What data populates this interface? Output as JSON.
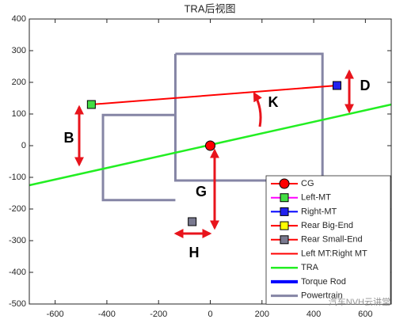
{
  "chart_data": {
    "type": "line",
    "title": "TRA后视图",
    "xlim": [
      -700,
      700
    ],
    "ylim": [
      -500,
      400
    ],
    "xticks": [
      -600,
      -400,
      -200,
      0,
      200,
      400,
      600
    ],
    "yticks": [
      -500,
      -400,
      -300,
      -200,
      -100,
      0,
      100,
      200,
      300,
      400
    ],
    "grid": false,
    "legend_position": "lower right",
    "series": [
      {
        "name": "CG",
        "color": "#ff0000",
        "marker": "circle",
        "marker_color": "#ff0000",
        "x": [
          0
        ],
        "values": [
          0
        ]
      },
      {
        "name": "Left-MT",
        "color": "#ff00ff",
        "marker": "square",
        "marker_color": "#44dd44",
        "x": [
          -460
        ],
        "values": [
          130
        ]
      },
      {
        "name": "Right-MT",
        "color": "#0000ff",
        "marker": "square",
        "marker_color": "#2222ee",
        "x": [
          490
        ],
        "values": [
          190
        ]
      },
      {
        "name": "Rear Big-End",
        "color": "#ff0000",
        "marker": "square",
        "marker_color": "#ffff00",
        "x": [],
        "values": []
      },
      {
        "name": "Rear Small-End",
        "color": "#ff0000",
        "marker": "square",
        "marker_color": "#7a7a90",
        "x": [
          -70
        ],
        "values": [
          -240
        ]
      },
      {
        "name": "Left MT:Right MT",
        "color": "#ff0000",
        "line_width": 2,
        "x": [
          -460,
          490
        ],
        "values": [
          130,
          190
        ]
      },
      {
        "name": "TRA",
        "color": "#22ee22",
        "line_width": 2.5,
        "x": [
          -700,
          700
        ],
        "values": [
          -125,
          130
        ]
      },
      {
        "name": "Torque Rod",
        "color": "#0000ff",
        "line_width": 4,
        "x": [],
        "values": []
      },
      {
        "name": "Powertrain",
        "color": "#8585a5",
        "line_width": 3,
        "x": [
          -135,
          434,
          434,
          -135,
          -135,
          null,
          -135,
          -415,
          -415,
          -135
        ],
        "values": [
          290,
          290,
          -110,
          -110,
          290,
          null,
          97,
          97,
          -172,
          -172
        ]
      }
    ],
    "annotations": [
      "B",
      "D",
      "K",
      "G",
      "H"
    ],
    "watermark": "汽车NVH云讲堂"
  }
}
